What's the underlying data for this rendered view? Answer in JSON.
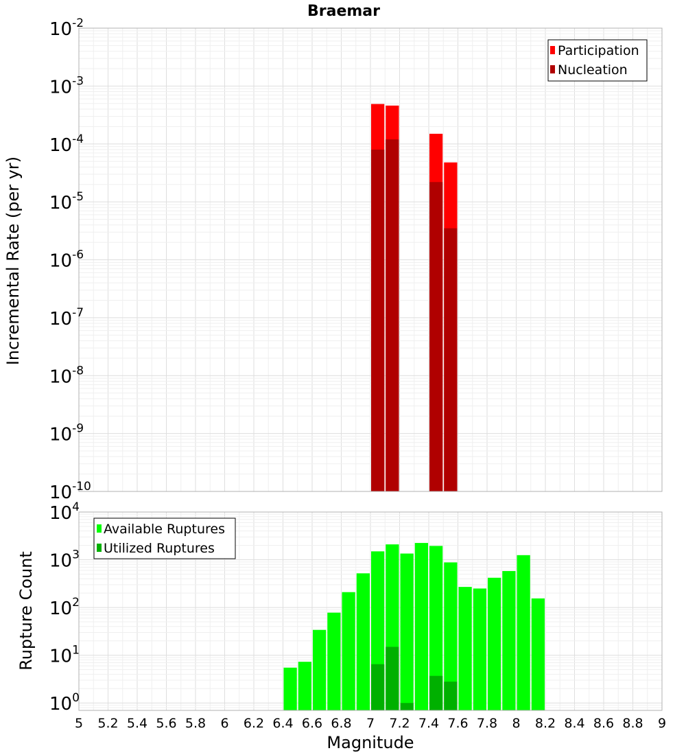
{
  "chart_data": [
    {
      "type": "bar",
      "title": "Braemar",
      "ylabel": "Incremental Rate (per yr)",
      "xlabel": "",
      "y_scale": "log",
      "ylim": [
        1e-10,
        0.01
      ],
      "y_ticks": [
        {
          "base": "10",
          "exp": "-10",
          "value": 1e-10
        },
        {
          "base": "10",
          "exp": "-9",
          "value": 1e-09
        },
        {
          "base": "10",
          "exp": "-8",
          "value": 1e-08
        },
        {
          "base": "10",
          "exp": "-7",
          "value": 1e-07
        },
        {
          "base": "10",
          "exp": "-6",
          "value": 1e-06
        },
        {
          "base": "10",
          "exp": "-5",
          "value": 1e-05
        },
        {
          "base": "10",
          "exp": "-4",
          "value": 0.0001
        },
        {
          "base": "10",
          "exp": "-3",
          "value": 0.001
        },
        {
          "base": "10",
          "exp": "-2",
          "value": 0.01
        }
      ],
      "grid": true,
      "legend_position": "top-right",
      "series": [
        {
          "name": "Participation",
          "color": "#ff0000",
          "points": [
            {
              "x": 7.05,
              "y": 0.00049
            },
            {
              "x": 7.15,
              "y": 0.00046
            },
            {
              "x": 7.45,
              "y": 0.00015
            },
            {
              "x": 7.55,
              "y": 4.8e-05
            }
          ]
        },
        {
          "name": "Nucleation",
          "color": "#b00000",
          "points": [
            {
              "x": 7.05,
              "y": 8e-05
            },
            {
              "x": 7.15,
              "y": 0.00012
            },
            {
              "x": 7.45,
              "y": 2.2e-05
            },
            {
              "x": 7.55,
              "y": 3.5e-06
            }
          ]
        }
      ]
    },
    {
      "type": "bar",
      "title": "",
      "ylabel": "Rupture Count",
      "xlabel": "Magnitude",
      "y_scale": "log",
      "ylim": [
        0.7,
        10000
      ],
      "y_ticks": [
        {
          "base": "10",
          "exp": "0",
          "value": 1
        },
        {
          "base": "10",
          "exp": "1",
          "value": 10
        },
        {
          "base": "10",
          "exp": "2",
          "value": 100
        },
        {
          "base": "10",
          "exp": "3",
          "value": 1000
        },
        {
          "base": "10",
          "exp": "4",
          "value": 10000
        }
      ],
      "xlim": [
        5,
        9
      ],
      "x_tick_labels": [
        "5",
        "5.2",
        "5.4",
        "5.6",
        "5.8",
        "6",
        "6.2",
        "6.4",
        "6.6",
        "6.8",
        "7",
        "7.2",
        "7.4",
        "7.6",
        "7.8",
        "8",
        "8.2",
        "8.4",
        "8.6",
        "8.8",
        "9"
      ],
      "grid": true,
      "legend_position": "top-left",
      "series": [
        {
          "name": "Available Ruptures",
          "color": "#00ff00",
          "points": [
            {
              "x": 6.45,
              "y": 5.5
            },
            {
              "x": 6.55,
              "y": 7.3
            },
            {
              "x": 6.65,
              "y": 34
            },
            {
              "x": 6.75,
              "y": 78
            },
            {
              "x": 6.85,
              "y": 210
            },
            {
              "x": 6.95,
              "y": 520
            },
            {
              "x": 7.05,
              "y": 1500
            },
            {
              "x": 7.15,
              "y": 2100
            },
            {
              "x": 7.25,
              "y": 1350
            },
            {
              "x": 7.35,
              "y": 2250
            },
            {
              "x": 7.45,
              "y": 1950
            },
            {
              "x": 7.55,
              "y": 880
            },
            {
              "x": 7.65,
              "y": 270
            },
            {
              "x": 7.75,
              "y": 250
            },
            {
              "x": 7.85,
              "y": 420
            },
            {
              "x": 7.95,
              "y": 580
            },
            {
              "x": 8.05,
              "y": 1250
            },
            {
              "x": 8.15,
              "y": 155
            }
          ]
        },
        {
          "name": "Utilized Ruptures",
          "color": "#00b000",
          "points": [
            {
              "x": 7.05,
              "y": 6.5
            },
            {
              "x": 7.15,
              "y": 15
            },
            {
              "x": 7.25,
              "y": 1
            },
            {
              "x": 7.45,
              "y": 3.7
            },
            {
              "x": 7.55,
              "y": 2.8
            }
          ]
        }
      ]
    }
  ]
}
